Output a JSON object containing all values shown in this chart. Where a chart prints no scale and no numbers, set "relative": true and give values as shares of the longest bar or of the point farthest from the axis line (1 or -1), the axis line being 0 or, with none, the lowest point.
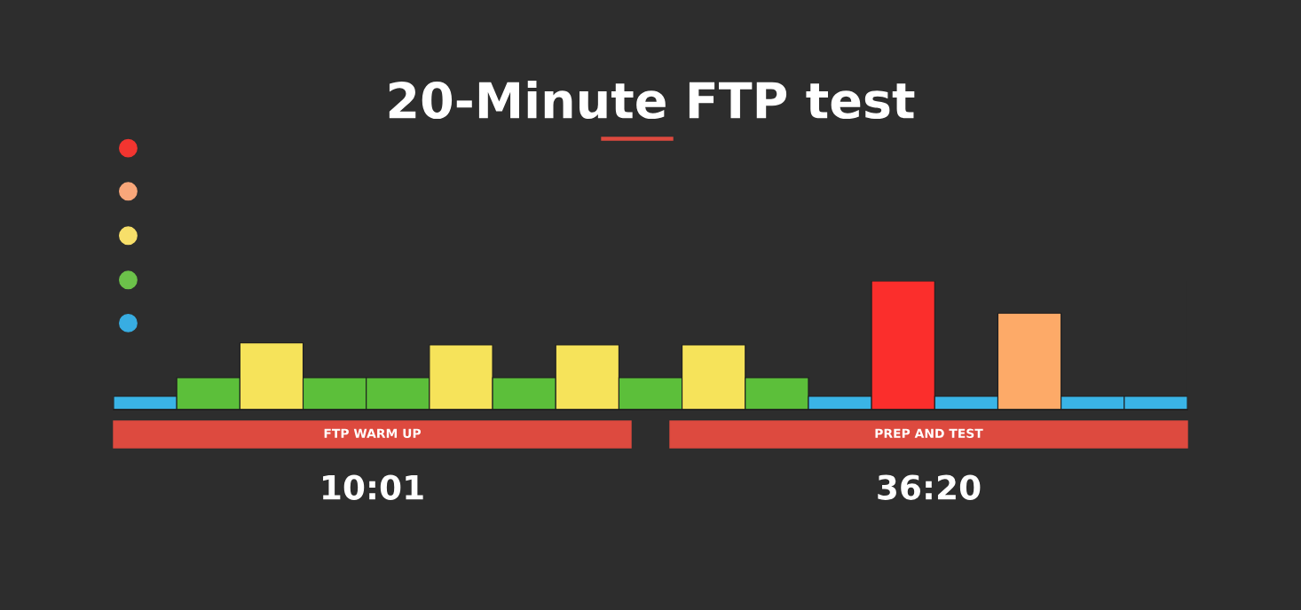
{
  "chart_data": {
    "type": "bar",
    "title": "20-Minute FTP test",
    "relative": true,
    "categories": [
      null,
      null,
      null,
      null,
      null,
      null,
      null,
      null,
      null,
      null,
      null,
      null,
      null,
      null,
      null,
      null,
      null
    ],
    "values": [
      0.103,
      0.248,
      0.52,
      0.248,
      0.248,
      0.503,
      0.248,
      0.503,
      0.248,
      0.503,
      0.248,
      0.103,
      1.0,
      0.103,
      0.75,
      0.103,
      0.103
    ],
    "colors": [
      "#3ab4e6",
      "#5cbf3a",
      "#f6e35a",
      "#5cbf3a",
      "#5cbf3a",
      "#f6e35a",
      "#5cbf3a",
      "#f6e35a",
      "#5cbf3a",
      "#f6e35a",
      "#5cbf3a",
      "#3ab4e6",
      "#fb2e2c",
      "#3ab4e6",
      "#fdaa68",
      "#3ab4e6",
      "#3ab4e6"
    ],
    "annotations": [
      "FTP WARM UP",
      "PREP AND TEST",
      "10:01",
      "36:20"
    ]
  }
}
